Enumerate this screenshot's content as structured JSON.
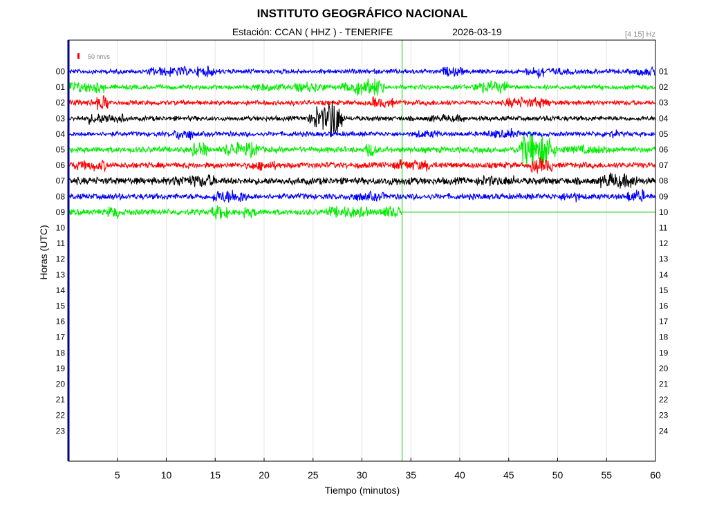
{
  "chart_data": {
    "type": "line",
    "title": "INSTITUTO GEOGRÁFICO NACIONAL",
    "subtitle_station": "Estación:  CCAN ( HHZ ) - TENERIFE",
    "subtitle_date": "2026-03-19",
    "filter_label": "[4 15] Hz",
    "scale_label": "50 nm/s",
    "xlabel": "Tiempo (minutos)",
    "ylabel": "Horas (UTC)",
    "xlim": [
      0,
      60
    ],
    "x_ticks": [
      "5",
      "10",
      "15",
      "20",
      "25",
      "30",
      "35",
      "40",
      "45",
      "50",
      "55",
      "60"
    ],
    "y_ticks_left": [
      "00",
      "01",
      "02",
      "03",
      "04",
      "05",
      "06",
      "07",
      "08",
      "09",
      "10",
      "11",
      "12",
      "13",
      "14",
      "15",
      "16",
      "17",
      "18",
      "19",
      "20",
      "21",
      "22",
      "23"
    ],
    "y_ticks_right": [
      "01",
      "02",
      "03",
      "04",
      "05",
      "06",
      "07",
      "08",
      "09",
      "10",
      "11",
      "12",
      "13",
      "14",
      "15",
      "16",
      "17",
      "18",
      "19",
      "20",
      "21",
      "22",
      "23",
      "24"
    ],
    "current_time_minute": 34.1,
    "series_colors": [
      "#0000ff",
      "#00ee00",
      "#ff0000",
      "#000000"
    ],
    "traces": [
      {
        "hour": "00",
        "color": "#0000ff",
        "end_minute": 60,
        "amplitude": 4
      },
      {
        "hour": "01",
        "color": "#00ee00",
        "end_minute": 60,
        "amplitude": 4
      },
      {
        "hour": "02",
        "color": "#ff0000",
        "end_minute": 60,
        "amplitude": 4
      },
      {
        "hour": "03",
        "color": "#000000",
        "end_minute": 60,
        "amplitude": 4
      },
      {
        "hour": "04",
        "color": "#0000ff",
        "end_minute": 60,
        "amplitude": 4
      },
      {
        "hour": "05",
        "color": "#00ee00",
        "end_minute": 60,
        "amplitude": 5
      },
      {
        "hour": "06",
        "color": "#ff0000",
        "end_minute": 60,
        "amplitude": 5
      },
      {
        "hour": "07",
        "color": "#000000",
        "end_minute": 60,
        "amplitude": 6
      },
      {
        "hour": "08",
        "color": "#0000ff",
        "end_minute": 60,
        "amplitude": 5
      },
      {
        "hour": "09",
        "color": "#00ee00",
        "end_minute": 34.1,
        "amplitude": 5
      }
    ],
    "grid": true
  }
}
